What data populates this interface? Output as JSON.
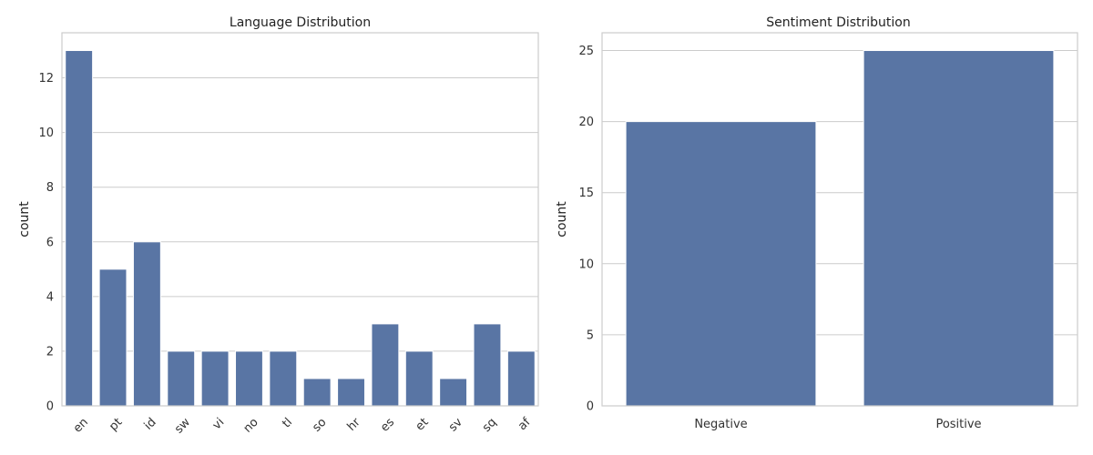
{
  "chart_data": [
    {
      "type": "bar",
      "title": "Language Distribution",
      "xlabel": "",
      "ylabel": "count",
      "categories": [
        "en",
        "pt",
        "id",
        "sw",
        "vi",
        "no",
        "tl",
        "so",
        "hr",
        "es",
        "et",
        "sv",
        "sq",
        "af"
      ],
      "values": [
        13,
        5,
        6,
        2,
        2,
        2,
        2,
        1,
        1,
        3,
        2,
        1,
        3,
        2
      ],
      "ylim": [
        0,
        13.65
      ],
      "yticks": [
        0,
        2,
        4,
        6,
        8,
        10,
        12
      ],
      "grid": "horizontal",
      "tick_rotation": 45,
      "bar_color": "#5975a4"
    },
    {
      "type": "bar",
      "title": "Sentiment Distribution",
      "xlabel": "",
      "ylabel": "count",
      "categories": [
        "Negative",
        "Positive"
      ],
      "values": [
        20,
        25
      ],
      "ylim": [
        0,
        26.25
      ],
      "yticks": [
        0,
        5,
        10,
        15,
        20,
        25
      ],
      "grid": "horizontal",
      "tick_rotation": 0,
      "bar_color": "#5975a4"
    }
  ]
}
